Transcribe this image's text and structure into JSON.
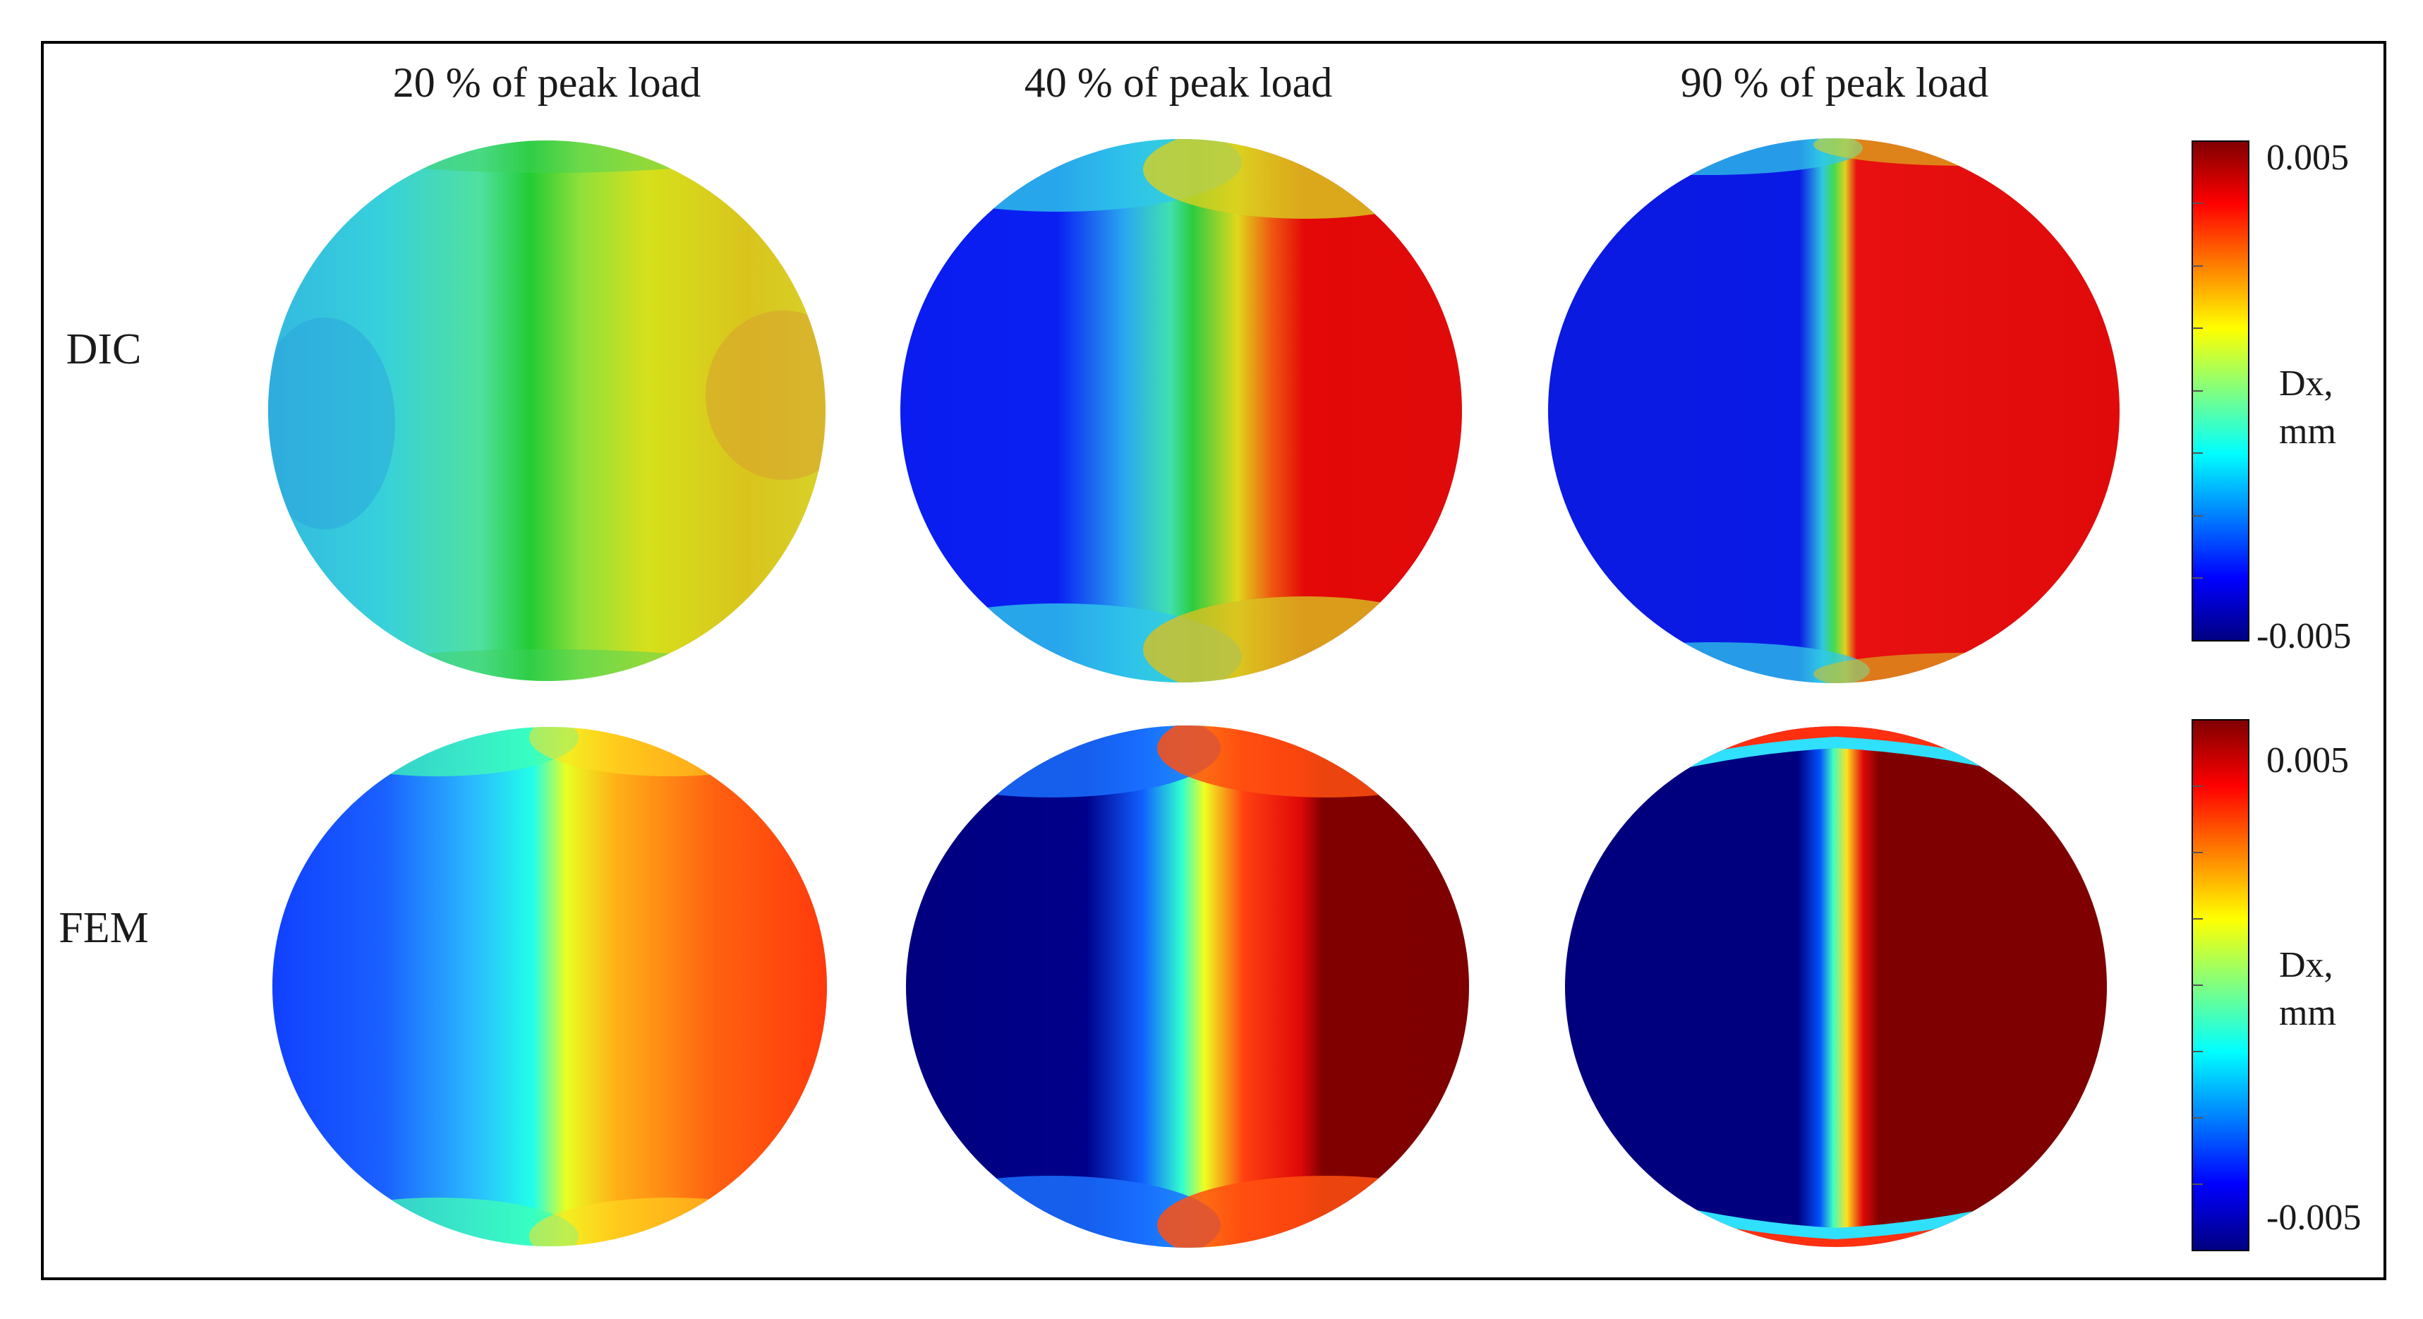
{
  "figure": {
    "columns": [
      {
        "label": "20 % of peak load"
      },
      {
        "label": "40 % of peak load"
      },
      {
        "label": "90 % of peak load"
      }
    ],
    "rows": [
      {
        "label": "DIC"
      },
      {
        "label": "FEM"
      }
    ],
    "colorbars": [
      {
        "max_label": "0.005",
        "min_label": "-0.005",
        "title_line1": "Dx,",
        "title_line2": "mm"
      },
      {
        "max_label": "0.005",
        "min_label": "-0.005",
        "title_line1": "Dx,",
        "title_line2": "mm"
      }
    ],
    "colormap": [
      "#00007f",
      "#0000ff",
      "#0080ff",
      "#00ffff",
      "#80ff80",
      "#ffff00",
      "#ff8000",
      "#ff0000",
      "#7f0000"
    ]
  }
}
